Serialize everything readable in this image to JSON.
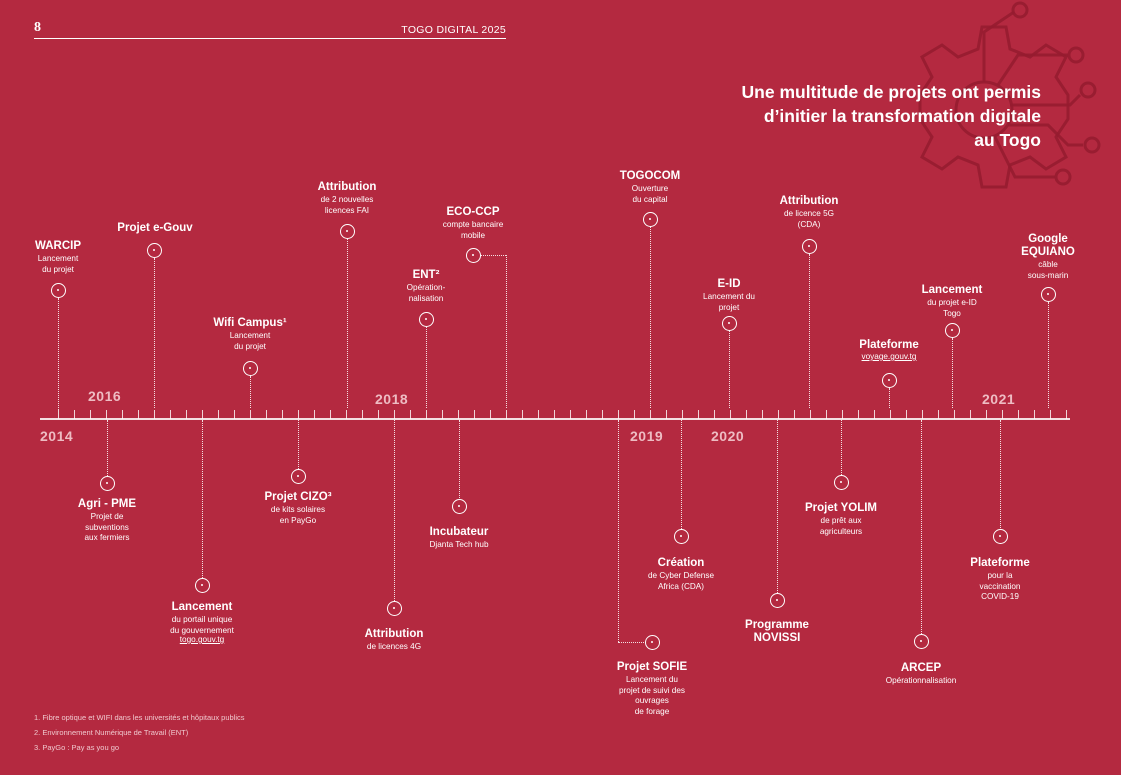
{
  "header": {
    "page_number": "8",
    "doc_title": "TOGO DIGITAL 2025"
  },
  "headline": [
    "Une multitude de projets ont permis",
    "d’initier la transformation digitale",
    "au Togo"
  ],
  "years": [
    "2014",
    "2016",
    "2018",
    "2019",
    "2020",
    "2021"
  ],
  "events": [
    {
      "id": "warcip",
      "title": "WARCIP",
      "desc": [
        "Lancement",
        "du projet"
      ]
    },
    {
      "id": "egouv",
      "title": "Projet e-Gouv",
      "desc": []
    },
    {
      "id": "wifi",
      "title": "Wifi Campus¹",
      "desc": [
        "Lancement",
        "du projet"
      ]
    },
    {
      "id": "attr-fai",
      "title": "Attribution",
      "desc": [
        "de 2 nouvelles",
        "licences FAI"
      ]
    },
    {
      "id": "ent",
      "title": "ENT²",
      "desc": [
        "Opération-",
        "nalisation"
      ]
    },
    {
      "id": "eco-ccp",
      "title": "ECO-CCP",
      "desc": [
        "compte bancaire",
        "mobile"
      ]
    },
    {
      "id": "togocom",
      "title": "TOGOCOM",
      "desc": [
        "Ouverture",
        "du capital"
      ]
    },
    {
      "id": "eid",
      "title": "E-ID",
      "desc": [
        "Lancement du",
        "projet"
      ]
    },
    {
      "id": "attr-5g",
      "title": "Attribution",
      "desc": [
        "de licence 5G",
        "(CDA)"
      ]
    },
    {
      "id": "plateforme-voyage",
      "title": "Plateforme",
      "desc": [],
      "link": "voyage.gouv.tg"
    },
    {
      "id": "lancement-eid",
      "title": "Lancement",
      "desc": [
        "du projet e-ID",
        "Togo"
      ]
    },
    {
      "id": "google",
      "title": "Google",
      "title2": "EQUIANO",
      "desc": [
        "câble",
        "sous-marin"
      ]
    },
    {
      "id": "agri",
      "title": "Agri - PME",
      "desc": [
        "Projet de",
        "subventions",
        "aux fermiers"
      ]
    },
    {
      "id": "portail",
      "title": "Lancement",
      "desc": [
        "du portail unique",
        "du gouvernement"
      ],
      "link": "togo.gouv.tg"
    },
    {
      "id": "cizo",
      "title": "Projet CIZO³",
      "desc": [
        "de kits solaires",
        "en PayGo"
      ]
    },
    {
      "id": "attr-4g",
      "title": "Attribution",
      "desc": [
        "de licences 4G"
      ]
    },
    {
      "id": "incubateur",
      "title": "Incubateur",
      "desc": [
        "Djanta Tech hub"
      ]
    },
    {
      "id": "sofie",
      "title": "Projet SOFIE",
      "desc": [
        "Lancement du",
        "projet de suivi des",
        "ouvrages",
        "de forage"
      ]
    },
    {
      "id": "cda",
      "title": "Création",
      "desc": [
        "de Cyber Defense",
        "Africa (CDA)"
      ]
    },
    {
      "id": "novissi",
      "title": "Programme",
      "title2": "NOVISSI",
      "desc": []
    },
    {
      "id": "yolim",
      "title": "Projet YOLIM",
      "desc": [
        "de prêt aux",
        "agriculteurs"
      ]
    },
    {
      "id": "arcep",
      "title": "ARCEP",
      "desc": [
        "Opérationnalisation"
      ]
    },
    {
      "id": "vaccination",
      "title": "Plateforme",
      "desc": [
        "pour la",
        "vaccination",
        "COVID-19"
      ]
    }
  ],
  "footnotes": [
    "1. Fibre optique et WIFI dans les universités et hôpitaux publics",
    "2. Environnement Numérique de Travail (ENT)",
    "3. PayGo : Pay as you go"
  ],
  "icons": {
    "background": "gear-circuit-icon"
  },
  "colors": {
    "background": "#b42940",
    "accent_text": "#eebcc3"
  }
}
